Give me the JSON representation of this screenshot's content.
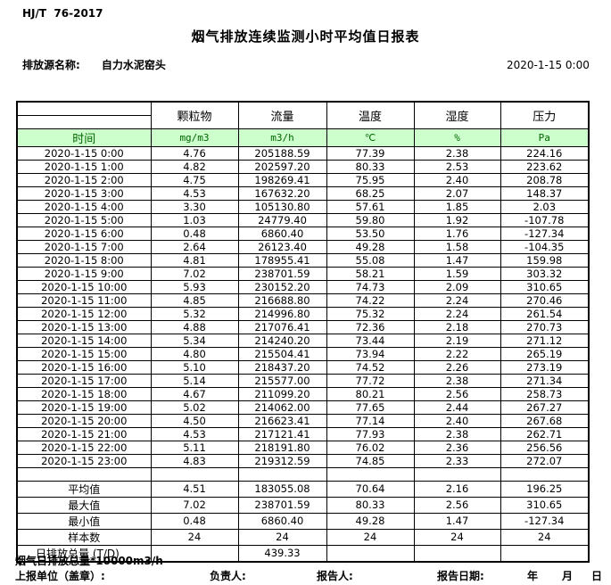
{
  "header": {
    "standard": "HJ/T  76-2017",
    "title": "烟气排放连续监测小时平均值日报表",
    "source_label": "排放源名称:",
    "source_name": "自力水泥窑头",
    "datetime": "2020-1-15 0:00"
  },
  "table": {
    "time_header": "时间",
    "columns": [
      {
        "label": "颗粒物",
        "unit": "mg/m3"
      },
      {
        "label": "流量",
        "unit": "m3/h"
      },
      {
        "label": "温度",
        "unit": "℃"
      },
      {
        "label": "湿度",
        "unit": "%"
      },
      {
        "label": "压力",
        "unit": "Pa"
      }
    ],
    "rows": [
      {
        "time": "2020-1-15 0:00",
        "values": [
          "4.76",
          "205188.59",
          "77.39",
          "2.38",
          "224.16"
        ]
      },
      {
        "time": "2020-1-15 1:00",
        "values": [
          "4.82",
          "202597.20",
          "80.33",
          "2.53",
          "223.62"
        ]
      },
      {
        "time": "2020-1-15 2:00",
        "values": [
          "4.75",
          "198269.41",
          "75.95",
          "2.40",
          "208.78"
        ]
      },
      {
        "time": "2020-1-15 3:00",
        "values": [
          "4.53",
          "167632.20",
          "68.25",
          "2.07",
          "148.37"
        ]
      },
      {
        "time": "2020-1-15 4:00",
        "values": [
          "3.30",
          "105130.80",
          "57.61",
          "1.85",
          "2.03"
        ]
      },
      {
        "time": "2020-1-15 5:00",
        "values": [
          "1.03",
          "24779.40",
          "59.80",
          "1.92",
          "-107.78"
        ]
      },
      {
        "time": "2020-1-15 6:00",
        "values": [
          "0.48",
          "6860.40",
          "53.50",
          "1.76",
          "-127.34"
        ]
      },
      {
        "time": "2020-1-15 7:00",
        "values": [
          "2.64",
          "26123.40",
          "49.28",
          "1.58",
          "-104.35"
        ]
      },
      {
        "time": "2020-1-15 8:00",
        "values": [
          "4.81",
          "178955.41",
          "55.08",
          "1.47",
          "159.98"
        ]
      },
      {
        "time": "2020-1-15 9:00",
        "values": [
          "7.02",
          "238701.59",
          "58.21",
          "1.59",
          "303.32"
        ]
      },
      {
        "time": "2020-1-15 10:00",
        "values": [
          "5.93",
          "230152.20",
          "74.73",
          "2.09",
          "310.65"
        ]
      },
      {
        "time": "2020-1-15 11:00",
        "values": [
          "4.85",
          "216688.80",
          "74.22",
          "2.24",
          "270.46"
        ]
      },
      {
        "time": "2020-1-15 12:00",
        "values": [
          "5.32",
          "214996.80",
          "75.32",
          "2.24",
          "261.54"
        ]
      },
      {
        "time": "2020-1-15 13:00",
        "values": [
          "4.88",
          "217076.41",
          "72.36",
          "2.18",
          "270.73"
        ]
      },
      {
        "time": "2020-1-15 14:00",
        "values": [
          "5.34",
          "214240.20",
          "73.44",
          "2.19",
          "271.12"
        ]
      },
      {
        "time": "2020-1-15 15:00",
        "values": [
          "4.80",
          "215504.41",
          "73.94",
          "2.22",
          "265.19"
        ]
      },
      {
        "time": "2020-1-15 16:00",
        "values": [
          "5.10",
          "218437.20",
          "74.52",
          "2.26",
          "273.19"
        ]
      },
      {
        "time": "2020-1-15 17:00",
        "values": [
          "5.14",
          "215577.00",
          "77.72",
          "2.38",
          "271.34"
        ]
      },
      {
        "time": "2020-1-15 18:00",
        "values": [
          "4.67",
          "211099.20",
          "80.21",
          "2.56",
          "258.73"
        ]
      },
      {
        "time": "2020-1-15 19:00",
        "values": [
          "5.02",
          "214062.00",
          "77.65",
          "2.44",
          "267.27"
        ]
      },
      {
        "time": "2020-1-15 20:00",
        "values": [
          "4.50",
          "216623.41",
          "77.14",
          "2.40",
          "267.68"
        ]
      },
      {
        "time": "2020-1-15 21:00",
        "values": [
          "4.53",
          "217121.41",
          "77.93",
          "2.38",
          "262.71"
        ]
      },
      {
        "time": "2020-1-15 22:00",
        "values": [
          "5.11",
          "218191.80",
          "76.02",
          "2.36",
          "256.56"
        ]
      },
      {
        "time": "2020-1-15 23:00",
        "values": [
          "4.83",
          "219312.59",
          "74.85",
          "2.33",
          "272.07"
        ]
      }
    ],
    "summary": [
      {
        "label": "平均值",
        "values": [
          "4.51",
          "183055.08",
          "70.64",
          "2.16",
          "196.25"
        ]
      },
      {
        "label": "最大值",
        "values": [
          "7.02",
          "238701.59",
          "80.33",
          "2.56",
          "310.65"
        ]
      },
      {
        "label": "最小值",
        "values": [
          "0.48",
          "6860.40",
          "49.28",
          "1.47",
          "-127.34"
        ]
      },
      {
        "label": "样本数",
        "values": [
          "24",
          "24",
          "24",
          "24",
          "24"
        ]
      },
      {
        "label": "日排放总量 (T/D)",
        "values": [
          "",
          "439.33",
          "",
          "",
          ""
        ]
      }
    ]
  },
  "footer": {
    "note": "烟气日排放总量*10000m3/h",
    "unit_label": "上报单位（盖章）:",
    "responsible_label": "负责人:",
    "reporter_label": "报告人:",
    "report_date_label": "报告日期:",
    "year_label": "年",
    "month_label": "月",
    "day_label": "日"
  },
  "colors": {
    "header_row_bg": "#ccffcc",
    "header_row_text": "#006600",
    "border": "#000000"
  }
}
